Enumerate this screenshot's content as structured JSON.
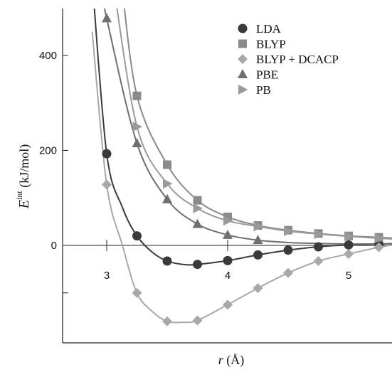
{
  "chart_data": {
    "type": "line",
    "title": "",
    "xlabel": {
      "var": "r",
      "unit": " (Å)"
    },
    "ylabel": {
      "main": "E",
      "sup": "int",
      "unit": " (kJ/mol)"
    },
    "xlim": [
      2.6,
      5.35
    ],
    "ylim": [
      -205,
      500
    ],
    "x_ticks": [
      {
        "value": 3,
        "label": "3"
      },
      {
        "value": 4,
        "label": "4"
      },
      {
        "value": 5,
        "label": "5"
      }
    ],
    "y_ticks": [
      {
        "value": -100,
        "label": ""
      },
      {
        "value": 0,
        "label": "0"
      },
      {
        "value": 200,
        "label": "200"
      },
      {
        "value": 400,
        "label": "400"
      }
    ],
    "zero_line": true,
    "legend_position": "top-right",
    "series": [
      {
        "name": "LDA",
        "marker": "circle",
        "color": "#3a3a3a",
        "curve": [
          [
            2.88,
            560
          ],
          [
            3.0,
            193
          ],
          [
            3.13,
            80
          ],
          [
            3.25,
            20
          ],
          [
            3.38,
            -15
          ],
          [
            3.5,
            -33
          ],
          [
            3.63,
            -40
          ],
          [
            3.75,
            -40
          ],
          [
            4.0,
            -32
          ],
          [
            4.25,
            -20
          ],
          [
            4.5,
            -10
          ],
          [
            4.75,
            -3
          ],
          [
            5.0,
            1
          ],
          [
            5.25,
            3
          ],
          [
            5.4,
            4
          ]
        ],
        "points": [
          [
            3.0,
            193
          ],
          [
            3.25,
            20
          ],
          [
            3.5,
            -33
          ],
          [
            3.75,
            -40
          ],
          [
            4.0,
            -32
          ],
          [
            4.25,
            -20
          ],
          [
            4.5,
            -10
          ],
          [
            4.75,
            -3
          ],
          [
            5.0,
            1
          ],
          [
            5.25,
            3
          ]
        ]
      },
      {
        "name": "BLYP",
        "marker": "square",
        "color": "#8a8a8a",
        "curve": [
          [
            3.12,
            560
          ],
          [
            3.25,
            315
          ],
          [
            3.5,
            170
          ],
          [
            3.75,
            95
          ],
          [
            4.0,
            60
          ],
          [
            4.25,
            42
          ],
          [
            4.5,
            32
          ],
          [
            4.75,
            25
          ],
          [
            5.0,
            20
          ],
          [
            5.25,
            17
          ],
          [
            5.4,
            15
          ]
        ],
        "points": [
          [
            3.25,
            315
          ],
          [
            3.5,
            170
          ],
          [
            3.75,
            95
          ],
          [
            4.0,
            60
          ],
          [
            4.25,
            42
          ],
          [
            4.5,
            32
          ],
          [
            4.75,
            25
          ],
          [
            5.0,
            20
          ],
          [
            5.25,
            17
          ]
        ]
      },
      {
        "name": "BLYP + DCACP",
        "marker": "diamond",
        "color": "#a8a8a8",
        "curve": [
          [
            2.88,
            450
          ],
          [
            3.0,
            128
          ],
          [
            3.13,
            0
          ],
          [
            3.25,
            -100
          ],
          [
            3.38,
            -140
          ],
          [
            3.5,
            -160
          ],
          [
            3.63,
            -162
          ],
          [
            3.75,
            -158
          ],
          [
            4.0,
            -125
          ],
          [
            4.25,
            -90
          ],
          [
            4.5,
            -58
          ],
          [
            4.75,
            -33
          ],
          [
            5.0,
            -18
          ],
          [
            5.25,
            -4
          ],
          [
            5.4,
            2
          ]
        ],
        "points": [
          [
            3.0,
            128
          ],
          [
            3.25,
            -100
          ],
          [
            3.5,
            -160
          ],
          [
            3.75,
            -158
          ],
          [
            4.0,
            -125
          ],
          [
            4.25,
            -90
          ],
          [
            4.5,
            -58
          ],
          [
            4.75,
            -33
          ],
          [
            5.0,
            -18
          ],
          [
            5.25,
            -4
          ]
        ]
      },
      {
        "name": "PBE",
        "marker": "triangle-up",
        "color": "#6f6f6f",
        "curve": [
          [
            2.94,
            560
          ],
          [
            3.0,
            478
          ],
          [
            3.25,
            215
          ],
          [
            3.5,
            97
          ],
          [
            3.75,
            45
          ],
          [
            4.0,
            22
          ],
          [
            4.25,
            11
          ],
          [
            4.5,
            6
          ],
          [
            4.75,
            4
          ],
          [
            5.0,
            3
          ],
          [
            5.25,
            3
          ],
          [
            5.4,
            3
          ]
        ],
        "points": [
          [
            3.0,
            478
          ],
          [
            3.25,
            215
          ],
          [
            3.5,
            97
          ],
          [
            3.75,
            45
          ],
          [
            4.0,
            22
          ],
          [
            4.25,
            11
          ]
        ]
      },
      {
        "name": "PB",
        "marker": "triangle-right",
        "color": "#9a9a9a",
        "curve": [
          [
            3.05,
            560
          ],
          [
            3.25,
            250
          ],
          [
            3.5,
            130
          ],
          [
            3.75,
            78
          ],
          [
            4.0,
            52
          ],
          [
            4.25,
            40
          ],
          [
            4.5,
            30
          ],
          [
            4.75,
            24
          ],
          [
            5.0,
            19
          ],
          [
            5.25,
            15
          ],
          [
            5.4,
            13
          ]
        ],
        "points": [
          [
            3.25,
            250
          ],
          [
            3.5,
            130
          ],
          [
            3.75,
            78
          ],
          [
            4.0,
            52
          ],
          [
            4.25,
            40
          ],
          [
            4.5,
            30
          ],
          [
            4.75,
            24
          ],
          [
            5.0,
            19
          ],
          [
            5.25,
            15
          ]
        ]
      }
    ]
  }
}
